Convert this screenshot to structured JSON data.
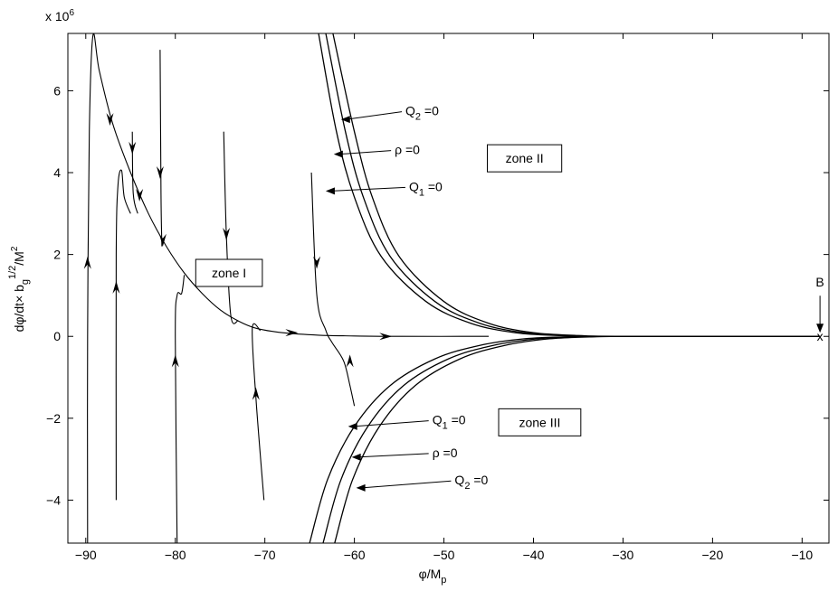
{
  "chart_data": {
    "type": "line",
    "xlabel": "φ/M",
    "xlabel_sub": "p",
    "ylabel": "dφ/dt× b",
    "ylabel_sub": "g",
    "ylabel_sup": "1/2",
    "ylabel_tail": "/M",
    "ylabel_tail_sup": "2",
    "y_multiplier": "x 10",
    "y_multiplier_exp": "6",
    "xlim": [
      -92,
      -7
    ],
    "ylim": [
      -5.05,
      7.4
    ],
    "x_ticks": [
      -90,
      -80,
      -70,
      -60,
      -50,
      -40,
      -30,
      -20,
      -10
    ],
    "y_ticks": [
      -4,
      -2,
      0,
      2,
      4,
      6
    ],
    "grid": false,
    "boundary_curves": [
      {
        "name": "Q2 =0",
        "upper": true,
        "points": [
          [
            -62.4,
            7.4
          ],
          [
            -60,
            5.0
          ],
          [
            -58,
            3.4
          ],
          [
            -55,
            1.95
          ],
          [
            -50,
            0.85
          ],
          [
            -45,
            0.32
          ],
          [
            -40,
            0.09
          ],
          [
            -35,
            0.02
          ],
          [
            -30,
            0
          ],
          [
            -8,
            0
          ]
        ]
      },
      {
        "name": "ρ =0",
        "upper": true,
        "points": [
          [
            -63.2,
            7.4
          ],
          [
            -61,
            5.0
          ],
          [
            -59,
            3.4
          ],
          [
            -56,
            1.95
          ],
          [
            -51,
            0.85
          ],
          [
            -46,
            0.32
          ],
          [
            -41,
            0.09
          ],
          [
            -36,
            0.02
          ],
          [
            -31,
            0
          ],
          [
            -8,
            0
          ]
        ]
      },
      {
        "name": "Q1 =0",
        "upper": true,
        "points": [
          [
            -64.0,
            7.4
          ],
          [
            -62,
            5.0
          ],
          [
            -60,
            3.4
          ],
          [
            -57,
            1.95
          ],
          [
            -52,
            0.85
          ],
          [
            -47,
            0.32
          ],
          [
            -42,
            0.09
          ],
          [
            -37,
            0.02
          ],
          [
            -32,
            0
          ],
          [
            -8,
            0
          ]
        ]
      },
      {
        "name": "Q1 =0",
        "upper": false,
        "points": [
          [
            -65.0,
            -5.05
          ],
          [
            -63,
            -3.5
          ],
          [
            -60,
            -2.2
          ],
          [
            -56,
            -1.2
          ],
          [
            -51,
            -0.55
          ],
          [
            -46,
            -0.22
          ],
          [
            -41,
            -0.06
          ],
          [
            -36,
            -0.01
          ],
          [
            -31,
            0
          ]
        ]
      },
      {
        "name": "ρ =0",
        "upper": false,
        "points": [
          [
            -63.5,
            -5.05
          ],
          [
            -61.5,
            -3.5
          ],
          [
            -58.5,
            -2.2
          ],
          [
            -54.5,
            -1.2
          ],
          [
            -49.5,
            -0.55
          ],
          [
            -44.5,
            -0.22
          ],
          [
            -39.5,
            -0.06
          ],
          [
            -34.5,
            -0.01
          ],
          [
            -30,
            0
          ]
        ]
      },
      {
        "name": "Q2 =0",
        "upper": false,
        "points": [
          [
            -62.2,
            -5.05
          ],
          [
            -60.2,
            -3.5
          ],
          [
            -57.2,
            -2.2
          ],
          [
            -53.2,
            -1.2
          ],
          [
            -48.2,
            -0.55
          ],
          [
            -43.2,
            -0.22
          ],
          [
            -38.2,
            -0.06
          ],
          [
            -33.2,
            -0.01
          ],
          [
            -29,
            0
          ]
        ]
      }
    ],
    "trajectories": [
      {
        "points": [
          [
            -89.8,
            -5.05
          ],
          [
            -89.8,
            0
          ],
          [
            -89.6,
            5
          ],
          [
            -89.2,
            7.35
          ],
          [
            -88.5,
            6.5
          ],
          [
            -87,
            5.2
          ],
          [
            -85,
            4.0
          ],
          [
            -83,
            3.0
          ],
          [
            -81,
            2.2
          ],
          [
            -79,
            1.55
          ],
          [
            -77,
            1.05
          ],
          [
            -75,
            0.65
          ],
          [
            -73,
            0.38
          ],
          [
            -71,
            0.2
          ],
          [
            -68,
            0.09
          ],
          [
            -64,
            0.03
          ],
          [
            -60,
            0.01
          ],
          [
            -55,
            0
          ],
          [
            -45,
            0
          ]
        ]
      },
      {
        "points": [
          [
            -86.6,
            -4.0
          ],
          [
            -86.6,
            2
          ],
          [
            -86.4,
            3.7
          ],
          [
            -86.0,
            4.05
          ],
          [
            -85.7,
            3.4
          ],
          [
            -85,
            3.0
          ]
        ]
      },
      {
        "points": [
          [
            -84.8,
            5.0
          ],
          [
            -84.7,
            3.5
          ],
          [
            -84.2,
            3.0
          ]
        ]
      },
      {
        "points": [
          [
            -81.7,
            7.0
          ],
          [
            -81.6,
            3.5
          ],
          [
            -81.5,
            2.2
          ]
        ]
      },
      {
        "points": [
          [
            -79.8,
            -5.05
          ],
          [
            -80.0,
            0
          ],
          [
            -79.8,
            1.0
          ],
          [
            -79.3,
            1.05
          ],
          [
            -79,
            1.5
          ]
        ]
      },
      {
        "points": [
          [
            -74.6,
            5.0
          ],
          [
            -74.3,
            2.5
          ],
          [
            -73.8,
            0.5
          ],
          [
            -73,
            0.38
          ]
        ]
      },
      {
        "points": [
          [
            -70.1,
            -4.0
          ],
          [
            -71.0,
            -1.5
          ],
          [
            -71.4,
            0.2
          ],
          [
            -70.5,
            0.14
          ]
        ]
      },
      {
        "points": [
          [
            -64.8,
            4.0
          ],
          [
            -64.2,
            1.0
          ],
          [
            -63.2,
            0.15
          ],
          [
            -62.5,
            -0.15
          ],
          [
            -61.2,
            -0.6
          ],
          [
            -60.5,
            -1.2
          ],
          [
            -60.0,
            -1.7
          ]
        ]
      }
    ],
    "direction_arrows": [
      {
        "x": -87.3,
        "y": 5.3,
        "dir": "down"
      },
      {
        "x": -84.0,
        "y": 3.45,
        "dir": "down"
      },
      {
        "x": -81.4,
        "y": 2.35,
        "dir": "down"
      },
      {
        "x": -77.0,
        "y": 1.3,
        "dir": "right"
      },
      {
        "x": -67.0,
        "y": 0.09,
        "dir": "right"
      },
      {
        "x": -56.5,
        "y": 0.0,
        "dir": "right"
      },
      {
        "x": -89.8,
        "y": 1.8,
        "dir": "up"
      },
      {
        "x": -86.6,
        "y": 1.2,
        "dir": "up"
      },
      {
        "x": -84.8,
        "y": 4.6,
        "dir": "down"
      },
      {
        "x": -81.7,
        "y": 4.0,
        "dir": "down"
      },
      {
        "x": -80.0,
        "y": -0.6,
        "dir": "up"
      },
      {
        "x": -74.3,
        "y": 2.5,
        "dir": "down"
      },
      {
        "x": -71.0,
        "y": -1.4,
        "dir": "up"
      },
      {
        "x": -64.2,
        "y": 1.8,
        "dir": "down"
      },
      {
        "x": -60.5,
        "y": -0.6,
        "dir": "up"
      }
    ],
    "annotations": [
      {
        "text": "Q",
        "sub": "2",
        "tail": " =0",
        "label_x": -54.3,
        "label_y": 5.4,
        "arrow_to": [
          -61.5,
          5.3
        ]
      },
      {
        "text": "ρ =0",
        "sub": "",
        "tail": "",
        "label_x": -55.5,
        "label_y": 4.45,
        "arrow_to": [
          -62.3,
          4.45
        ]
      },
      {
        "text": "Q",
        "sub": "1",
        "tail": " =0",
        "label_x": -53.9,
        "label_y": 3.55,
        "arrow_to": [
          -63.2,
          3.55
        ]
      },
      {
        "text": "Q",
        "sub": "1",
        "tail": " =0",
        "label_x": -51.3,
        "label_y": -2.15,
        "arrow_to": [
          -60.7,
          -2.2
        ]
      },
      {
        "text": "ρ =0",
        "sub": "",
        "tail": "",
        "label_x": -51.3,
        "label_y": -2.95,
        "arrow_to": [
          -60.3,
          -2.95
        ]
      },
      {
        "text": "Q",
        "sub": "2",
        "tail": " =0",
        "label_x": -48.8,
        "label_y": -3.62,
        "arrow_to": [
          -59.8,
          -3.7
        ]
      }
    ],
    "zones": [
      {
        "label": "zone I",
        "x": -74.0,
        "y": 1.55
      },
      {
        "label": "zone II",
        "x": -41.0,
        "y": 4.35
      },
      {
        "label": "zone III",
        "x": -39.3,
        "y": -2.1
      }
    ],
    "point_label": {
      "label": "B",
      "marker": "x",
      "x": -8.0,
      "y": 0
    }
  }
}
